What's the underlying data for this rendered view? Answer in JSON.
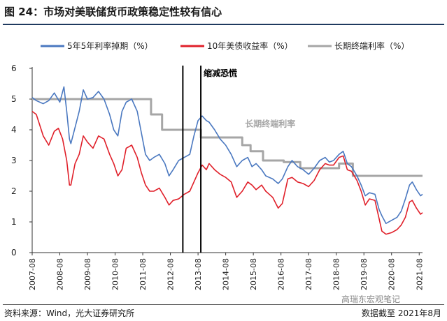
{
  "figure": {
    "title": "图 24：市场对美联储货币政策稳定性较有信心",
    "source": "资料来源：Wind，光大证券研究所",
    "data_cutoff": "数据截至 2021年8月",
    "watermark": "高瑞东宏观笔记"
  },
  "chart_data": {
    "type": "line",
    "ylim": [
      0,
      6
    ],
    "yticks": [
      "0",
      "1",
      "2",
      "3",
      "4",
      "5",
      "6"
    ],
    "xticks": [
      "2007-08",
      "2008-08",
      "2009-08",
      "2010-08",
      "2011-08",
      "2012-08",
      "2013-08",
      "2014-08",
      "2015-08",
      "2016-08",
      "2017-08",
      "2018-08",
      "2019-08",
      "2020-08",
      "2021-08"
    ],
    "legend": [
      "5年5年利率掉期（%）",
      "10年美债收益率（%）",
      "长期终端利率（%）"
    ],
    "series": [
      {
        "name": "5年5年利率掉期（%）",
        "color": "#4a78c0",
        "points": [
          [
            2007.6,
            5.05
          ],
          [
            2007.75,
            4.95
          ],
          [
            2008.0,
            4.85
          ],
          [
            2008.2,
            4.95
          ],
          [
            2008.4,
            5.2
          ],
          [
            2008.6,
            4.9
          ],
          [
            2008.75,
            5.4
          ],
          [
            2008.85,
            4.6
          ],
          [
            2008.95,
            3.7
          ],
          [
            2009.0,
            3.55
          ],
          [
            2009.1,
            3.9
          ],
          [
            2009.3,
            4.6
          ],
          [
            2009.45,
            5.3
          ],
          [
            2009.6,
            5.0
          ],
          [
            2009.8,
            5.05
          ],
          [
            2010.0,
            5.25
          ],
          [
            2010.2,
            5.0
          ],
          [
            2010.4,
            4.5
          ],
          [
            2010.55,
            4.0
          ],
          [
            2010.7,
            3.8
          ],
          [
            2010.85,
            4.6
          ],
          [
            2011.0,
            4.9
          ],
          [
            2011.2,
            5.0
          ],
          [
            2011.4,
            4.6
          ],
          [
            2011.55,
            3.9
          ],
          [
            2011.7,
            3.2
          ],
          [
            2011.85,
            3.0
          ],
          [
            2012.0,
            3.1
          ],
          [
            2012.2,
            3.2
          ],
          [
            2012.4,
            2.9
          ],
          [
            2012.55,
            2.5
          ],
          [
            2012.7,
            2.7
          ],
          [
            2012.9,
            3.0
          ],
          [
            2013.1,
            3.1
          ],
          [
            2013.3,
            3.2
          ],
          [
            2013.45,
            3.8
          ],
          [
            2013.6,
            4.3
          ],
          [
            2013.75,
            4.45
          ],
          [
            2013.9,
            4.3
          ],
          [
            2014.0,
            4.25
          ],
          [
            2014.2,
            4.0
          ],
          [
            2014.4,
            3.7
          ],
          [
            2014.6,
            3.5
          ],
          [
            2014.8,
            3.2
          ],
          [
            2015.0,
            2.8
          ],
          [
            2015.2,
            3.0
          ],
          [
            2015.4,
            3.1
          ],
          [
            2015.55,
            2.8
          ],
          [
            2015.7,
            2.9
          ],
          [
            2015.9,
            2.7
          ],
          [
            2016.05,
            2.5
          ],
          [
            2016.3,
            2.4
          ],
          [
            2016.5,
            2.25
          ],
          [
            2016.65,
            2.4
          ],
          [
            2016.85,
            2.8
          ],
          [
            2017.0,
            3.0
          ],
          [
            2017.2,
            2.8
          ],
          [
            2017.4,
            2.7
          ],
          [
            2017.6,
            2.55
          ],
          [
            2017.8,
            2.75
          ],
          [
            2018.0,
            3.0
          ],
          [
            2018.2,
            3.1
          ],
          [
            2018.35,
            2.95
          ],
          [
            2018.5,
            3.0
          ],
          [
            2018.7,
            3.2
          ],
          [
            2018.85,
            3.3
          ],
          [
            2019.0,
            2.9
          ],
          [
            2019.15,
            2.8
          ],
          [
            2019.35,
            2.5
          ],
          [
            2019.5,
            2.2
          ],
          [
            2019.65,
            1.85
          ],
          [
            2019.8,
            1.95
          ],
          [
            2020.0,
            1.9
          ],
          [
            2020.15,
            1.4
          ],
          [
            2020.25,
            1.2
          ],
          [
            2020.4,
            0.95
          ],
          [
            2020.6,
            1.05
          ],
          [
            2020.8,
            1.15
          ],
          [
            2020.95,
            1.35
          ],
          [
            2021.1,
            1.75
          ],
          [
            2021.25,
            2.2
          ],
          [
            2021.35,
            2.3
          ],
          [
            2021.5,
            2.05
          ],
          [
            2021.65,
            1.85
          ],
          [
            2021.72,
            1.9
          ]
        ]
      },
      {
        "name": "10年美债收益率（%）",
        "color": "#e0202a",
        "points": [
          [
            2007.6,
            4.6
          ],
          [
            2007.75,
            4.5
          ],
          [
            2008.0,
            3.8
          ],
          [
            2008.2,
            3.5
          ],
          [
            2008.4,
            3.95
          ],
          [
            2008.55,
            4.05
          ],
          [
            2008.7,
            3.7
          ],
          [
            2008.85,
            3.0
          ],
          [
            2008.95,
            2.2
          ],
          [
            2009.0,
            2.2
          ],
          [
            2009.15,
            2.9
          ],
          [
            2009.3,
            3.2
          ],
          [
            2009.45,
            3.8
          ],
          [
            2009.6,
            3.6
          ],
          [
            2009.8,
            3.4
          ],
          [
            2010.0,
            3.8
          ],
          [
            2010.2,
            3.7
          ],
          [
            2010.4,
            3.2
          ],
          [
            2010.55,
            2.9
          ],
          [
            2010.7,
            2.5
          ],
          [
            2010.85,
            2.7
          ],
          [
            2011.0,
            3.4
          ],
          [
            2011.2,
            3.5
          ],
          [
            2011.4,
            3.1
          ],
          [
            2011.55,
            2.6
          ],
          [
            2011.7,
            2.2
          ],
          [
            2011.85,
            2.0
          ],
          [
            2012.0,
            2.0
          ],
          [
            2012.2,
            2.1
          ],
          [
            2012.4,
            1.8
          ],
          [
            2012.55,
            1.55
          ],
          [
            2012.7,
            1.7
          ],
          [
            2012.9,
            1.75
          ],
          [
            2013.1,
            1.9
          ],
          [
            2013.3,
            2.0
          ],
          [
            2013.45,
            2.3
          ],
          [
            2013.6,
            2.6
          ],
          [
            2013.75,
            2.85
          ],
          [
            2013.9,
            2.7
          ],
          [
            2014.0,
            2.9
          ],
          [
            2014.2,
            2.7
          ],
          [
            2014.4,
            2.55
          ],
          [
            2014.6,
            2.45
          ],
          [
            2014.8,
            2.3
          ],
          [
            2015.0,
            1.8
          ],
          [
            2015.2,
            2.0
          ],
          [
            2015.4,
            2.3
          ],
          [
            2015.55,
            2.2
          ],
          [
            2015.7,
            2.05
          ],
          [
            2015.9,
            2.2
          ],
          [
            2016.05,
            2.0
          ],
          [
            2016.3,
            1.8
          ],
          [
            2016.5,
            1.45
          ],
          [
            2016.65,
            1.6
          ],
          [
            2016.85,
            2.4
          ],
          [
            2017.0,
            2.45
          ],
          [
            2017.2,
            2.3
          ],
          [
            2017.4,
            2.25
          ],
          [
            2017.6,
            2.15
          ],
          [
            2017.8,
            2.35
          ],
          [
            2018.0,
            2.7
          ],
          [
            2018.2,
            2.9
          ],
          [
            2018.35,
            2.85
          ],
          [
            2018.5,
            2.85
          ],
          [
            2018.7,
            3.1
          ],
          [
            2018.85,
            3.15
          ],
          [
            2019.0,
            2.7
          ],
          [
            2019.15,
            2.65
          ],
          [
            2019.35,
            2.35
          ],
          [
            2019.5,
            2.0
          ],
          [
            2019.65,
            1.55
          ],
          [
            2019.8,
            1.75
          ],
          [
            2020.0,
            1.7
          ],
          [
            2020.15,
            1.1
          ],
          [
            2020.25,
            0.7
          ],
          [
            2020.4,
            0.6
          ],
          [
            2020.6,
            0.65
          ],
          [
            2020.8,
            0.75
          ],
          [
            2020.95,
            0.9
          ],
          [
            2021.1,
            1.15
          ],
          [
            2021.25,
            1.65
          ],
          [
            2021.35,
            1.7
          ],
          [
            2021.5,
            1.45
          ],
          [
            2021.65,
            1.25
          ],
          [
            2021.72,
            1.3
          ]
        ]
      },
      {
        "name": "长期终端利率（%）",
        "color": "#a6a6a6",
        "points": [
          [
            2007.6,
            5.0
          ],
          [
            2011.9,
            5.0
          ],
          [
            2011.9,
            4.5
          ],
          [
            2012.3,
            4.5
          ],
          [
            2012.3,
            4.0
          ],
          [
            2013.7,
            4.0
          ],
          [
            2013.7,
            3.75
          ],
          [
            2015.2,
            3.75
          ],
          [
            2015.2,
            3.5
          ],
          [
            2015.5,
            3.5
          ],
          [
            2015.5,
            3.3
          ],
          [
            2015.95,
            3.3
          ],
          [
            2015.95,
            3.0
          ],
          [
            2016.7,
            3.0
          ],
          [
            2016.7,
            2.95
          ],
          [
            2017.3,
            2.95
          ],
          [
            2017.3,
            2.75
          ],
          [
            2018.7,
            2.75
          ],
          [
            2018.7,
            2.9
          ],
          [
            2019.2,
            2.9
          ],
          [
            2019.2,
            2.5
          ],
          [
            2021.72,
            2.5
          ]
        ]
      }
    ],
    "vlines": [
      2013.05,
      2013.7
    ],
    "annotations": [
      {
        "text": "缩减恐慌",
        "x": 2013.8,
        "y": 5.75
      },
      {
        "text": "长期终端利率",
        "x": 2015.3,
        "y": 4.1
      }
    ]
  }
}
